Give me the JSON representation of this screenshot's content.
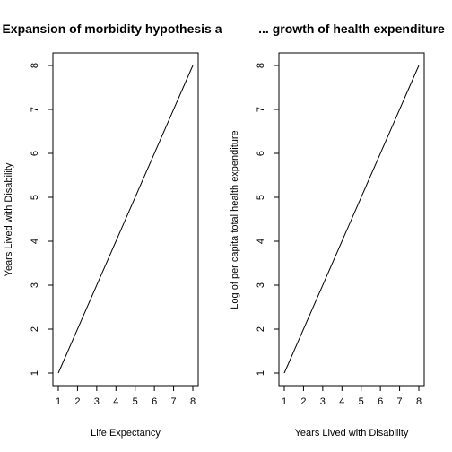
{
  "chart_data": [
    {
      "type": "line",
      "title": "Expansion of morbidity hypothesis a",
      "xlabel": "Life Expectancy",
      "ylabel": "Years Lived with Disability",
      "xlim": [
        1,
        8
      ],
      "ylim": [
        1,
        8
      ],
      "xticks": [
        "1",
        "2",
        "3",
        "4",
        "5",
        "6",
        "7",
        "8"
      ],
      "yticks": [
        "1",
        "2",
        "3",
        "4",
        "5",
        "6",
        "7",
        "8"
      ],
      "grid": false,
      "x": [
        1,
        8
      ],
      "y": [
        1,
        8
      ]
    },
    {
      "type": "line",
      "title": "... growth of health expenditure",
      "xlabel": "Years Lived with Disability",
      "ylabel": "Log of per capita total health expenditure",
      "xlim": [
        1,
        8
      ],
      "ylim": [
        1,
        8
      ],
      "xticks": [
        "1",
        "2",
        "3",
        "4",
        "5",
        "6",
        "7",
        "8"
      ],
      "yticks": [
        "1",
        "2",
        "3",
        "4",
        "5",
        "6",
        "7",
        "8"
      ],
      "grid": false,
      "x": [
        1,
        8
      ],
      "y": [
        1,
        8
      ]
    }
  ]
}
